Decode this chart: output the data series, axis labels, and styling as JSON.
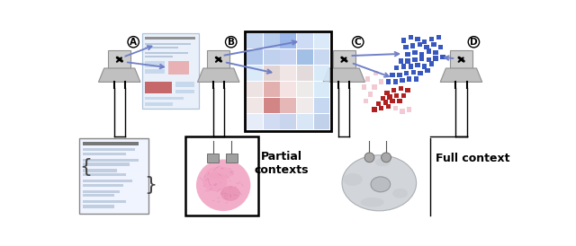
{
  "arrow_color": "#7080c8",
  "dark_arrow": "#5060b0",
  "gray_box": "#c0c0c0",
  "gray_trap": "#b8b8b8",
  "gray_dark": "#888888",
  "black": "#000000",
  "white": "#ffffff",
  "light_blue_bg": "#e8eef8",
  "blue_border": "#a0b8d8",
  "doc_line": "#c0ccd8",
  "doc_dark": "#888888",
  "pink_block": "#e8a8a8",
  "red_block": "#c05050",
  "heatmap_blue1": "#b8d0f0",
  "heatmap_blue2": "#98b8e8",
  "heatmap_blue3": "#c8daf4",
  "heatmap_pink1": "#f0c8c8",
  "heatmap_pink2": "#e09090",
  "heatmap_pink3": "#d07070",
  "heatmap_white": "#f0eef0",
  "scatter_blue": "#4060c0",
  "scatter_red": "#b02020",
  "scatter_pink": "#e8a0b0",
  "cell_gray": "#c8ccd0",
  "cell_dark": "#a0a4a8",
  "hist_pink": "#f0a0c0",
  "text_partial": "Partial\ncontexts",
  "text_full": "Full context",
  "panel_labels": [
    "A",
    "B",
    "C",
    "D"
  ]
}
